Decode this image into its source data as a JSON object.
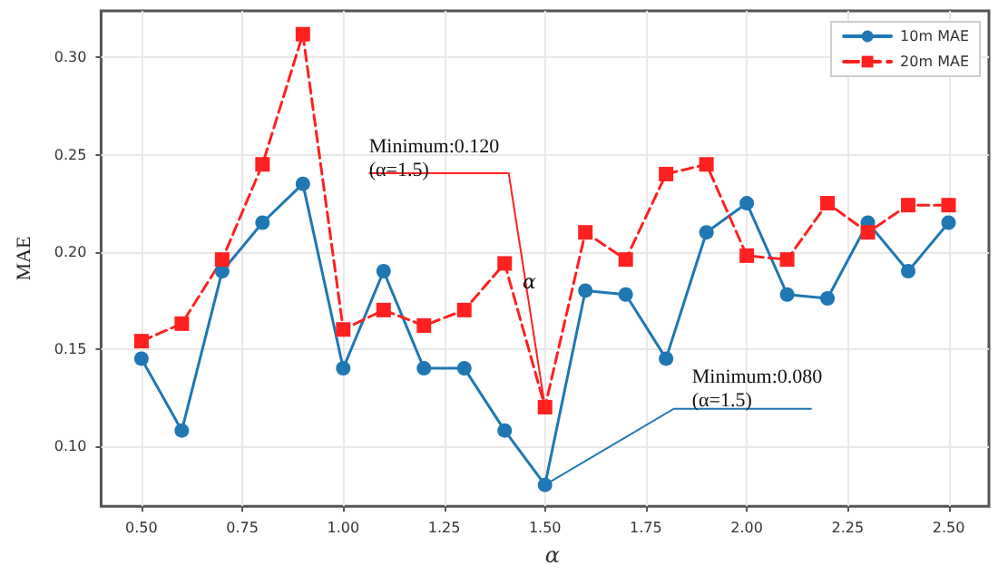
{
  "chart_data": {
    "type": "line",
    "xlabel": "α",
    "ylabel": "MAE",
    "x": [
      0.5,
      0.6,
      0.7,
      0.8,
      0.9,
      1.0,
      1.1,
      1.2,
      1.3,
      1.4,
      1.5,
      1.6,
      1.7,
      1.8,
      1.9,
      2.0,
      2.1,
      2.2,
      2.3,
      2.4,
      2.5
    ],
    "series": [
      {
        "name": "10m MAE",
        "color": "#1f77b4",
        "marker": "circle",
        "line_style": "solid",
        "values": [
          0.145,
          0.108,
          0.19,
          0.215,
          0.235,
          0.14,
          0.19,
          0.14,
          0.14,
          0.108,
          0.08,
          0.18,
          0.178,
          0.145,
          0.21,
          0.225,
          0.178,
          0.176,
          0.215,
          0.19,
          0.215
        ]
      },
      {
        "name": "20m MAE",
        "color": "#ff2020",
        "marker": "square",
        "line_style": "dashed",
        "values": [
          0.154,
          0.163,
          0.196,
          0.245,
          0.312,
          0.16,
          0.17,
          0.162,
          0.17,
          0.194,
          0.12,
          0.21,
          0.196,
          0.24,
          0.245,
          0.198,
          0.196,
          0.225,
          0.21,
          0.224,
          0.224
        ]
      }
    ],
    "xlim": [
      0.4,
      2.6
    ],
    "xticks": [
      {
        "value": 0.5,
        "label": "0.50"
      },
      {
        "value": 0.75,
        "label": "0.75"
      },
      {
        "value": 1.0,
        "label": "1.00"
      },
      {
        "value": 1.25,
        "label": "1.25"
      },
      {
        "value": 1.5,
        "label": "1.50"
      },
      {
        "value": 1.75,
        "label": "1.75"
      },
      {
        "value": 2.0,
        "label": "2.00"
      },
      {
        "value": 2.25,
        "label": "2.25"
      },
      {
        "value": 2.5,
        "label": "2.50"
      }
    ],
    "ylim": [
      0.069,
      0.324
    ],
    "yticks": [
      {
        "value": 0.1,
        "label": "0.10"
      },
      {
        "value": 0.15,
        "label": "0.15"
      },
      {
        "value": 0.2,
        "label": "0.20"
      },
      {
        "value": 0.25,
        "label": "0.25"
      },
      {
        "value": 0.3,
        "label": "0.30"
      }
    ],
    "annotations": [
      {
        "text": "Minimum:0.120\n(α=1.5)",
        "x": 1.5,
        "y": 0.12
      },
      {
        "text": "Minimum:0.080\n(α=1.5)",
        "x": 1.5,
        "y": 0.08
      },
      "α"
    ],
    "grid": true,
    "legend": "top right"
  }
}
